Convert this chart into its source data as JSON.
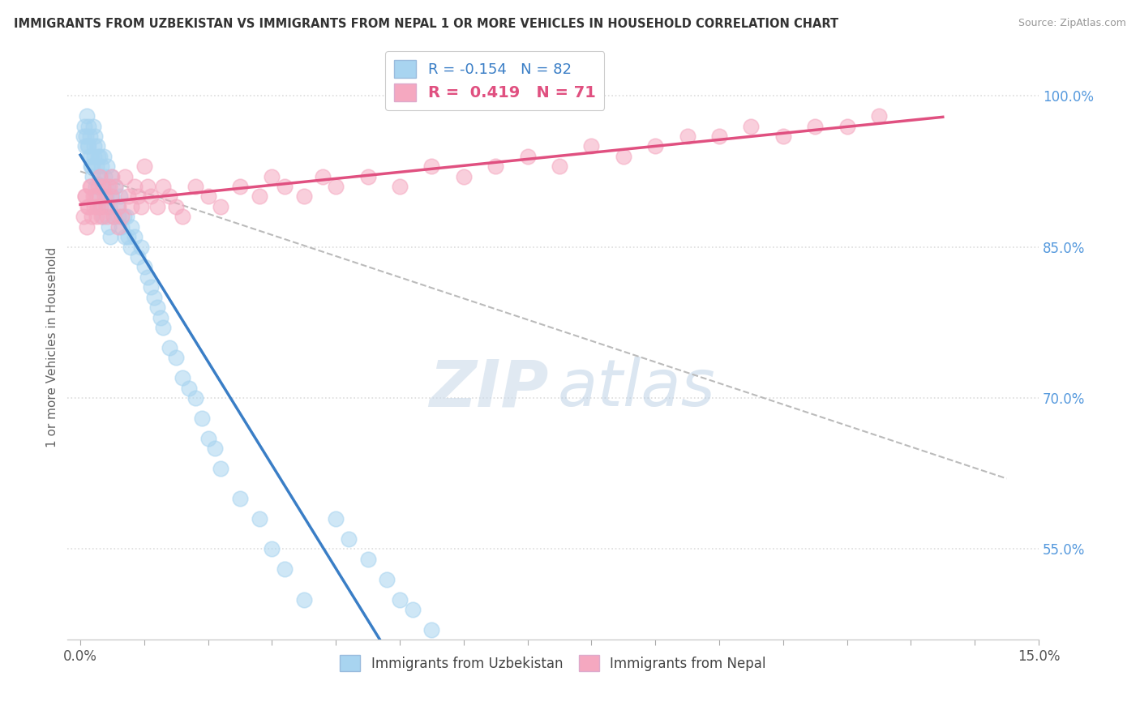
{
  "title": "IMMIGRANTS FROM UZBEKISTAN VS IMMIGRANTS FROM NEPAL 1 OR MORE VEHICLES IN HOUSEHOLD CORRELATION CHART",
  "source": "Source: ZipAtlas.com",
  "ylabel": "1 or more Vehicles in Household",
  "xlim": [
    -0.2,
    15.0
  ],
  "ylim": [
    46.0,
    104.0
  ],
  "yticks_right": [
    55.0,
    70.0,
    85.0,
    100.0
  ],
  "ytick_right_labels": [
    "55.0%",
    "70.0%",
    "85.0%",
    "100.0%"
  ],
  "legend_r_uzbekistan": "-0.154",
  "legend_n_uzbekistan": "82",
  "legend_r_nepal": "0.419",
  "legend_n_nepal": "71",
  "color_uzbekistan": "#A8D4F0",
  "color_nepal": "#F5A8C0",
  "color_trend_uzbekistan": "#3A7EC6",
  "color_trend_nepal": "#E05080",
  "color_trend_overall": "#BBBBBB",
  "background_color": "#FFFFFF",
  "grid_color": "#DDDDDD",
  "uzbekistan_x": [
    0.05,
    0.08,
    0.1,
    0.12,
    0.13,
    0.15,
    0.17,
    0.18,
    0.2,
    0.21,
    0.22,
    0.23,
    0.25,
    0.26,
    0.28,
    0.3,
    0.31,
    0.33,
    0.35,
    0.37,
    0.38,
    0.4,
    0.42,
    0.43,
    0.45,
    0.48,
    0.5,
    0.52,
    0.55,
    0.58,
    0.6,
    0.62,
    0.65,
    0.68,
    0.7,
    0.72,
    0.75,
    0.78,
    0.8,
    0.85,
    0.9,
    0.95,
    1.0,
    1.05,
    1.1,
    1.15,
    1.2,
    1.25,
    1.3,
    1.4,
    1.5,
    1.6,
    1.7,
    1.8,
    1.9,
    2.0,
    2.1,
    2.2,
    2.5,
    2.8,
    3.0,
    3.2,
    3.5,
    4.0,
    4.2,
    4.5,
    4.8,
    5.0,
    5.2,
    5.5,
    0.06,
    0.09,
    0.11,
    0.14,
    0.16,
    0.19,
    0.24,
    0.27,
    0.32,
    0.36,
    0.44,
    0.47
  ],
  "uzbekistan_y": [
    96,
    95,
    98,
    97,
    95,
    96,
    94,
    93,
    97,
    95,
    94,
    96,
    93,
    95,
    94,
    92,
    94,
    93,
    91,
    94,
    92,
    90,
    93,
    91,
    89,
    92,
    90,
    88,
    91,
    89,
    88,
    90,
    87,
    88,
    86,
    88,
    86,
    85,
    87,
    86,
    84,
    85,
    83,
    82,
    81,
    80,
    79,
    78,
    77,
    75,
    74,
    72,
    71,
    70,
    68,
    66,
    65,
    63,
    60,
    58,
    55,
    53,
    50,
    58,
    56,
    54,
    52,
    50,
    49,
    47,
    97,
    96,
    95,
    94,
    93,
    92,
    91,
    90,
    89,
    88,
    87,
    86
  ],
  "nepal_x": [
    0.05,
    0.08,
    0.1,
    0.12,
    0.15,
    0.18,
    0.2,
    0.22,
    0.25,
    0.28,
    0.3,
    0.32,
    0.35,
    0.38,
    0.4,
    0.42,
    0.45,
    0.48,
    0.5,
    0.52,
    0.55,
    0.6,
    0.65,
    0.7,
    0.75,
    0.8,
    0.85,
    0.9,
    0.95,
    1.0,
    1.05,
    1.1,
    1.2,
    1.3,
    1.4,
    1.5,
    1.6,
    1.8,
    2.0,
    2.2,
    2.5,
    2.8,
    3.0,
    3.2,
    3.5,
    3.8,
    4.0,
    4.5,
    5.0,
    5.5,
    6.0,
    6.5,
    7.0,
    7.5,
    8.0,
    8.5,
    9.0,
    9.5,
    10.0,
    10.5,
    11.0,
    11.5,
    12.0,
    12.5,
    0.07,
    0.11,
    0.16,
    0.23,
    0.27,
    0.33,
    0.6
  ],
  "nepal_y": [
    88,
    90,
    87,
    89,
    91,
    88,
    90,
    89,
    88,
    91,
    92,
    89,
    91,
    90,
    89,
    88,
    91,
    90,
    92,
    88,
    91,
    89,
    88,
    92,
    90,
    89,
    91,
    90,
    89,
    93,
    91,
    90,
    89,
    91,
    90,
    89,
    88,
    91,
    90,
    89,
    91,
    90,
    92,
    91,
    90,
    92,
    91,
    92,
    91,
    93,
    92,
    93,
    94,
    93,
    95,
    94,
    95,
    96,
    96,
    97,
    96,
    97,
    97,
    98,
    90,
    89,
    91,
    90,
    89,
    88,
    87
  ],
  "watermark_zip": "ZIP",
  "watermark_atlas": "atlas"
}
